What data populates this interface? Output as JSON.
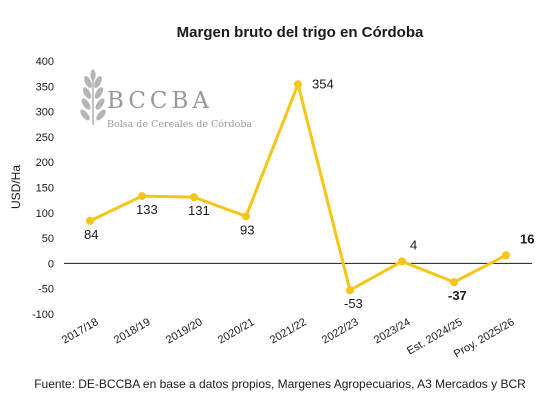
{
  "chart_data": {
    "type": "line",
    "title": "Margen bruto del trigo en Córdoba",
    "ylabel": "USD/Ha",
    "xlabel": "",
    "categories": [
      "2017/18",
      "2018/19",
      "2019/20",
      "2020/21",
      "2021/22",
      "2022/23",
      "2023/24",
      "Est. 2024/25",
      "Proy. 2025/26"
    ],
    "values": [
      84,
      133,
      131,
      93,
      354,
      -53,
      4,
      -37,
      16
    ],
    "data_labels": [
      "84",
      "133",
      "131",
      "93",
      "354",
      "-53",
      "4",
      "-37",
      "16"
    ],
    "bold_labels": [
      false,
      false,
      false,
      false,
      false,
      false,
      false,
      true,
      true
    ],
    "ylim": [
      -100,
      400
    ],
    "yticks": [
      -100,
      -50,
      0,
      50,
      100,
      150,
      200,
      250,
      300,
      350,
      400
    ],
    "grid": false,
    "color": "#F5C518"
  },
  "logo": {
    "name": "BCCBA",
    "subtitle": "Bolsa de Cereales de Córdoba"
  },
  "source": "Fuente: DE-BCCBA en base a datos propios, Margenes Agropecuarios, A3 Mercados y BCR"
}
